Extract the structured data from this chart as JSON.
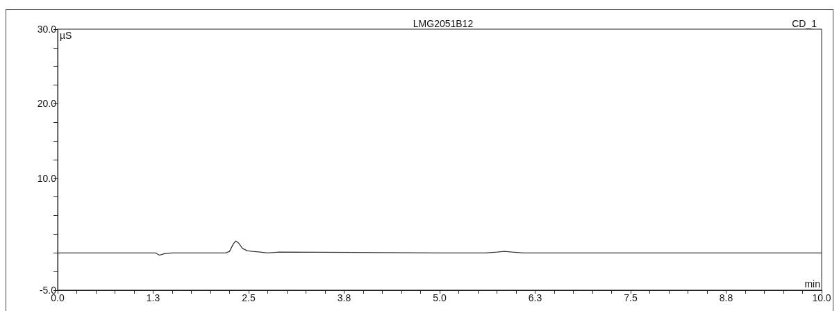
{
  "chart_data": {
    "type": "line",
    "title": "LMG2051B12",
    "subtitle": "CD_1",
    "xlabel": "min",
    "ylabel": "µS",
    "series": [
      {
        "color": "#333333",
        "x": [
          0,
          1.2,
          1.28,
          1.33,
          1.4,
          1.5,
          2.2,
          2.25,
          2.3,
          2.33,
          2.37,
          2.42,
          2.48,
          2.55,
          2.65,
          2.75,
          2.9,
          5.0,
          5.6,
          5.75,
          5.85,
          5.95,
          6.1,
          6.5,
          10.0
        ],
        "values": [
          0,
          0,
          0,
          -0.3,
          -0.1,
          0,
          0,
          0.2,
          1.2,
          1.6,
          1.3,
          0.6,
          0.3,
          0.2,
          0.1,
          0,
          0.1,
          0,
          0,
          0.1,
          0.2,
          0.1,
          0,
          0,
          0
        ]
      }
    ],
    "xlim": [
      0,
      10
    ],
    "ylim": [
      -5,
      30
    ],
    "xticks": [
      {
        "value": 0,
        "label": "0.0"
      },
      {
        "value": 0.25,
        "label": null
      },
      {
        "value": 0.5,
        "label": null
      },
      {
        "value": 0.75,
        "label": null
      },
      {
        "value": 1,
        "label": null
      },
      {
        "value": 1.25,
        "label": "1.3"
      },
      {
        "value": 1.5,
        "label": null
      },
      {
        "value": 1.75,
        "label": null
      },
      {
        "value": 2,
        "label": null
      },
      {
        "value": 2.25,
        "label": null
      },
      {
        "value": 2.5,
        "label": "2.5"
      },
      {
        "value": 2.75,
        "label": null
      },
      {
        "value": 3,
        "label": null
      },
      {
        "value": 3.25,
        "label": null
      },
      {
        "value": 3.5,
        "label": null
      },
      {
        "value": 3.75,
        "label": "3.8"
      },
      {
        "value": 4,
        "label": null
      },
      {
        "value": 4.25,
        "label": null
      },
      {
        "value": 4.5,
        "label": null
      },
      {
        "value": 4.75,
        "label": null
      },
      {
        "value": 5,
        "label": "5.0"
      },
      {
        "value": 5.25,
        "label": null
      },
      {
        "value": 5.5,
        "label": null
      },
      {
        "value": 5.75,
        "label": null
      },
      {
        "value": 6,
        "label": null
      },
      {
        "value": 6.25,
        "label": "6.3"
      },
      {
        "value": 6.5,
        "label": null
      },
      {
        "value": 6.75,
        "label": null
      },
      {
        "value": 7,
        "label": null
      },
      {
        "value": 7.25,
        "label": null
      },
      {
        "value": 7.5,
        "label": "7.5"
      },
      {
        "value": 7.75,
        "label": null
      },
      {
        "value": 8,
        "label": null
      },
      {
        "value": 8.25,
        "label": null
      },
      {
        "value": 8.5,
        "label": null
      },
      {
        "value": 8.75,
        "label": "8.8"
      },
      {
        "value": 9,
        "label": null
      },
      {
        "value": 9.25,
        "label": null
      },
      {
        "value": 9.5,
        "label": null
      },
      {
        "value": 9.75,
        "label": null
      },
      {
        "value": 10,
        "label": "10.0"
      }
    ],
    "yticks": [
      {
        "value": -5,
        "label": "-5.0"
      },
      {
        "value": -2.5,
        "label": null
      },
      {
        "value": 0,
        "label": null
      },
      {
        "value": 2.5,
        "label": null
      },
      {
        "value": 5,
        "label": null
      },
      {
        "value": 7.5,
        "label": null
      },
      {
        "value": 10,
        "label": "10.0"
      },
      {
        "value": 12.5,
        "label": null
      },
      {
        "value": 15,
        "label": null
      },
      {
        "value": 17.5,
        "label": null
      },
      {
        "value": 20,
        "label": "20.0"
      },
      {
        "value": 22.5,
        "label": null
      },
      {
        "value": 25,
        "label": null
      },
      {
        "value": 27.5,
        "label": null
      },
      {
        "value": 30,
        "label": "30.0"
      }
    ],
    "marker": "none",
    "line_style": "solid"
  }
}
